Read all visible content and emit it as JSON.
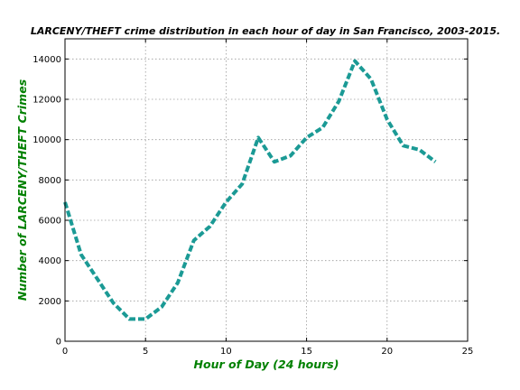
{
  "chart_data": {
    "type": "line",
    "title": "LARCENY/THEFT crime distribution in each hour of day in San Francisco, 2003-2015.",
    "xlabel": "Hour of Day (24 hours)",
    "ylabel": "Number of LARCENY/THEFT Crimes",
    "xlim": [
      0,
      25
    ],
    "ylim": [
      0,
      15000
    ],
    "xticks": [
      0,
      5,
      10,
      15,
      20,
      25
    ],
    "yticks": [
      0,
      2000,
      4000,
      6000,
      8000,
      10000,
      12000,
      14000
    ],
    "grid": true,
    "label_color": "#008000",
    "series": [
      {
        "color": "#1b9a95",
        "line_style": "dashed",
        "x": [
          0,
          1,
          2,
          3,
          4,
          5,
          6,
          7,
          8,
          9,
          10,
          11,
          12,
          13,
          14,
          15,
          16,
          17,
          18,
          19,
          20,
          21,
          22,
          23
        ],
        "y": [
          6900,
          4300,
          3100,
          1900,
          1100,
          1100,
          1700,
          2900,
          5000,
          5700,
          6900,
          7800,
          10100,
          8900,
          9200,
          10100,
          10600,
          11900,
          13900,
          13000,
          11000,
          9700,
          9500,
          8900
        ]
      }
    ]
  }
}
